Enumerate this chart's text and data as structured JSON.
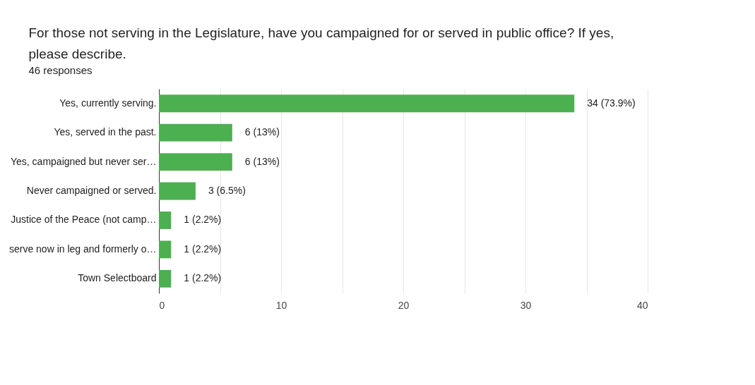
{
  "chart_data": {
    "type": "bar",
    "orientation": "horizontal",
    "title": "For those not serving in the Legislature, have you campaigned for or served in public office? If yes, please describe.",
    "subtitle": "46 responses",
    "categories": [
      "Yes, currently serving.",
      "Yes, served in the past.",
      "Yes, campaigned but never ser…",
      "Never campaigned or served.",
      "Justice of the Peace (not camp…",
      "serve now in leg and formerly o…",
      "Town Selectboard"
    ],
    "values": [
      34,
      6,
      6,
      3,
      1,
      1,
      1
    ],
    "value_labels": [
      "34 (73.9%)",
      "6 (13%)",
      "6 (13%)",
      "3 (6.5%)",
      "1 (2.2%)",
      "1 (2.2%)",
      "1 (2.2%)"
    ],
    "color": "#4caf50",
    "xlim": [
      0,
      40
    ],
    "xticks": [
      0,
      {
        "value": 5,
        "label": null
      },
      10,
      {
        "value": 15,
        "label": null
      },
      20,
      {
        "value": 25,
        "label": null
      },
      30,
      {
        "value": 35,
        "label": null
      },
      40
    ],
    "grid": "x"
  }
}
